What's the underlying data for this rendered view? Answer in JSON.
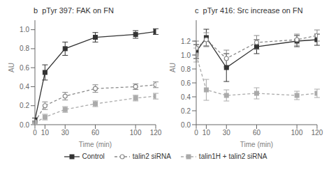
{
  "chart_data": [
    {
      "type": "line",
      "title": "b  pTyr 397: FAK on FN",
      "xlabel": "Time (min)",
      "ylabel": "AU",
      "x": [
        0,
        10,
        30,
        60,
        100,
        120
      ],
      "xlim": [
        0,
        120
      ],
      "xticks": [
        0,
        10,
        30,
        60,
        100,
        120
      ],
      "ylim": [
        0,
        1.1
      ],
      "yticks": [
        {
          "value": 0,
          "label": "0.0"
        },
        0.2,
        0.4,
        0.6,
        0.8,
        {
          "value": 1,
          "label": "1.0"
        }
      ],
      "legend": "bottom",
      "series": [
        {
          "name": "Control",
          "color": "#333333",
          "marker": "square",
          "line_style": "solid",
          "values": [
            0.05,
            0.55,
            0.8,
            0.92,
            0.95,
            0.98
          ],
          "errors": [
            0.02,
            0.08,
            0.07,
            0.05,
            0.04,
            0.03
          ]
        },
        {
          "name": "talin2 siRNA",
          "color": "#888888",
          "marker": "circle",
          "line_style": "dashed",
          "values": [
            0.03,
            0.2,
            0.3,
            0.38,
            0.4,
            0.42
          ],
          "errors": [
            0.01,
            0.04,
            0.04,
            0.04,
            0.03,
            0.03
          ]
        },
        {
          "name": "talin1H + talin2 siRNA",
          "color": "#aaaaaa",
          "marker": "square",
          "line_style": "dashed",
          "values": [
            0.02,
            0.08,
            0.16,
            0.22,
            0.28,
            0.3
          ],
          "errors": [
            0.01,
            0.03,
            0.03,
            0.03,
            0.03,
            0.03
          ]
        }
      ]
    },
    {
      "type": "line",
      "title": "c  pTyr 416: Src increase on FN",
      "xlabel": "Time (min)",
      "ylabel": "AU",
      "x": [
        0,
        10,
        30,
        60,
        100,
        120
      ],
      "xlim": [
        0,
        120
      ],
      "xticks": [
        0,
        10,
        30,
        60,
        100,
        120
      ],
      "ylim": [
        0,
        1.5
      ],
      "yticks": [
        {
          "value": 0,
          "label": "0.0"
        },
        0.2,
        0.4,
        0.6,
        0.8,
        {
          "value": 1,
          "label": "1.0"
        },
        1.2
      ],
      "legend": "bottom",
      "series": [
        {
          "name": "Control",
          "color": "#333333",
          "marker": "square",
          "line_style": "solid",
          "values": [
            1.05,
            1.25,
            0.82,
            1.12,
            1.2,
            1.22
          ],
          "errors": [
            0.1,
            0.12,
            0.2,
            0.1,
            0.08,
            0.08
          ]
        },
        {
          "name": "talin2 siRNA",
          "color": "#888888",
          "marker": "circle",
          "line_style": "dashed",
          "values": [
            1.1,
            1.22,
            0.95,
            1.18,
            1.22,
            1.28
          ],
          "errors": [
            0.1,
            0.1,
            0.12,
            0.1,
            0.08,
            0.08
          ]
        },
        {
          "name": "talin1H + talin2 siRNA",
          "color": "#aaaaaa",
          "marker": "square",
          "line_style": "dashed",
          "values": [
            1.0,
            0.5,
            0.42,
            0.45,
            0.42,
            0.45
          ],
          "errors": [
            0.1,
            0.15,
            0.08,
            0.08,
            0.06,
            0.06
          ]
        }
      ]
    }
  ]
}
